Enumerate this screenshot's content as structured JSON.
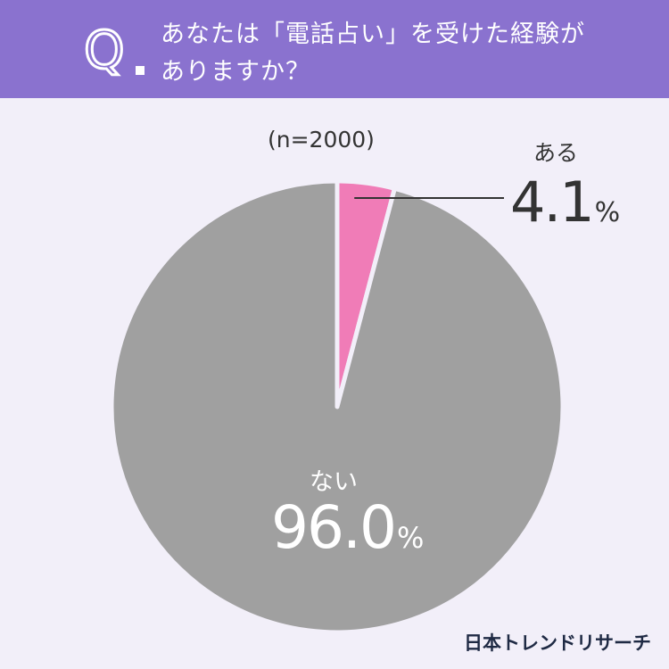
{
  "header": {
    "q_letter": "Q",
    "question_line1": "あなたは「電話占い」を受けた経験が",
    "question_line2": "ありますか？"
  },
  "colors": {
    "header_bg": "#8a72cf",
    "background": "#f2eff9",
    "yes_slice": "#f07cb7",
    "no_slice": "#a0a0a0"
  },
  "chart_data": {
    "type": "pie",
    "sample_size_label": "(n=2000)",
    "slices": [
      {
        "label": "ある",
        "value": 4.1,
        "display": "4.1",
        "unit": "%",
        "color": "#f07cb7"
      },
      {
        "label": "ない",
        "value": 96.0,
        "display": "96.0",
        "unit": "%",
        "color": "#a0a0a0"
      }
    ],
    "start_angle": "12 o'clock",
    "direction": "clockwise"
  },
  "brand": "日本トレンドリサーチ"
}
